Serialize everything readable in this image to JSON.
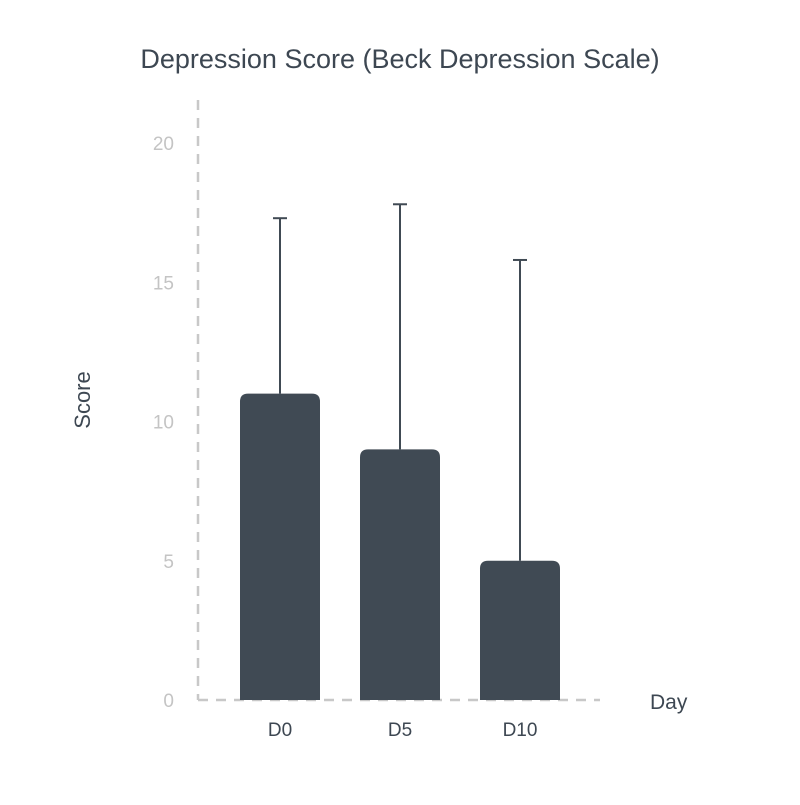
{
  "chart_data": {
    "type": "bar",
    "title": "Depression Score (Beck Depression Scale)",
    "xlabel": "Day",
    "ylabel": "Score",
    "categories": [
      "D0",
      "D5",
      "D10"
    ],
    "values": [
      11,
      9,
      5
    ],
    "error_upper": [
      17.3,
      17.8,
      15.8
    ],
    "ylim": [
      0,
      20
    ],
    "yticks": [
      0,
      5,
      10,
      15,
      20
    ],
    "ytick_labels": [
      "0",
      "5",
      "10",
      "15",
      "20"
    ],
    "grid": false,
    "legend": "none",
    "colors": {
      "bar": "#404a54",
      "error_bar": "#404a54",
      "axis": "#c8c8c8",
      "tick_label": "#c4c4c4",
      "text": "#3d4752"
    }
  }
}
